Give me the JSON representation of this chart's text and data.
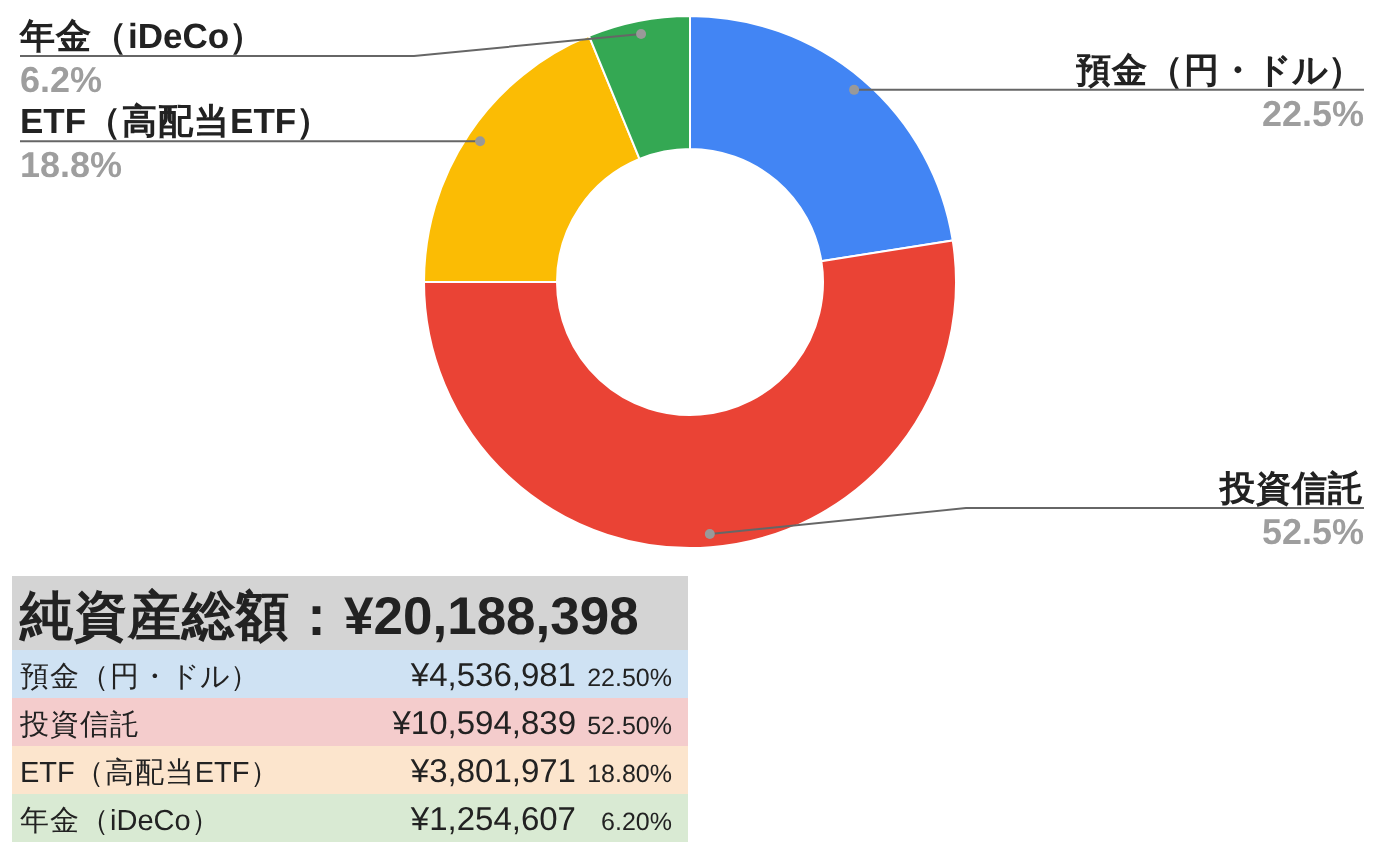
{
  "chart_data": [
    {
      "type": "donut",
      "categories": [
        "預金（円・ドル）",
        "投資信託",
        "ETF（高配当ETF）",
        "年金（iDeCo）"
      ],
      "values": [
        22.5,
        52.5,
        18.8,
        6.2
      ],
      "colors": [
        "#4285f4",
        "#ea4335",
        "#fbbc04",
        "#34a853"
      ],
      "value_labels": [
        "22.5%",
        "52.5%",
        "18.8%",
        "6.2%"
      ]
    },
    {
      "type": "other",
      "title": "純資産総額：¥20,188,398",
      "categories": [
        "預金（円・ドル）",
        "投資信託",
        "ETF（高配当ETF）",
        "年金（iDeCo）"
      ],
      "series": [
        {
          "colors": [
            "#cfe2f3",
            "#f4cccc",
            "#fce5cd",
            "#d9ead3"
          ],
          "values": [
            4536981,
            10594839,
            3801971,
            1254607
          ],
          "value_labels": [
            "¥4,536,981",
            "¥10,594,839",
            "¥3,801,971",
            "¥1,254,607"
          ]
        },
        {
          "values": [
            22.5,
            52.5,
            18.8,
            6.2
          ],
          "value_labels": [
            "22.50%",
            "52.50%",
            "18.80%",
            "6.20%"
          ]
        }
      ]
    }
  ]
}
